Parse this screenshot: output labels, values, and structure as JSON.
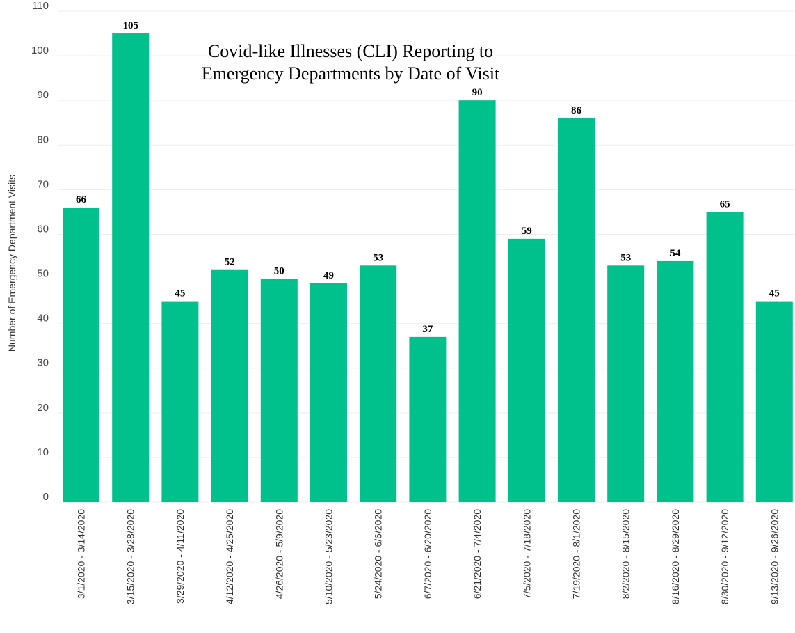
{
  "chart_data": {
    "type": "bar",
    "title_lines": [
      "Covid-like Illnesses (CLI) Reporting to",
      "Emergency Departments by Date of Visit"
    ],
    "xlabel": "",
    "ylabel": "Number of Emergency Department Visits",
    "ylim": [
      0,
      110
    ],
    "yticks": [
      0,
      10,
      20,
      30,
      40,
      50,
      60,
      70,
      80,
      90,
      100,
      110
    ],
    "grid": true,
    "bar_color": "#00c08b",
    "categories": [
      "3/1/2020 - 3/14/2020",
      "3/15/2020 - 3/28/2020",
      "3/29/2020 - 4/11/2020",
      "4/12/2020 - 4/25/2020",
      "4/26/2020 - 5/9/2020",
      "5/10/2020 - 5/23/2020",
      "5/24/2020 - 6/6/2020",
      "6/7/2020 - 6/20/2020",
      "6/21/2020 - 7/4/2020",
      "7/5/2020 - 7/18/2020",
      "7/19/2020 - 8/1/2020",
      "8/2/2020 - 8/15/2020",
      "8/16/2020 - 8/29/2020",
      "8/30/2020 - 9/12/2020",
      "9/13/2020 - 9/26/2020"
    ],
    "values": [
      66,
      105,
      45,
      52,
      50,
      49,
      53,
      37,
      90,
      59,
      86,
      53,
      54,
      65,
      45
    ]
  }
}
